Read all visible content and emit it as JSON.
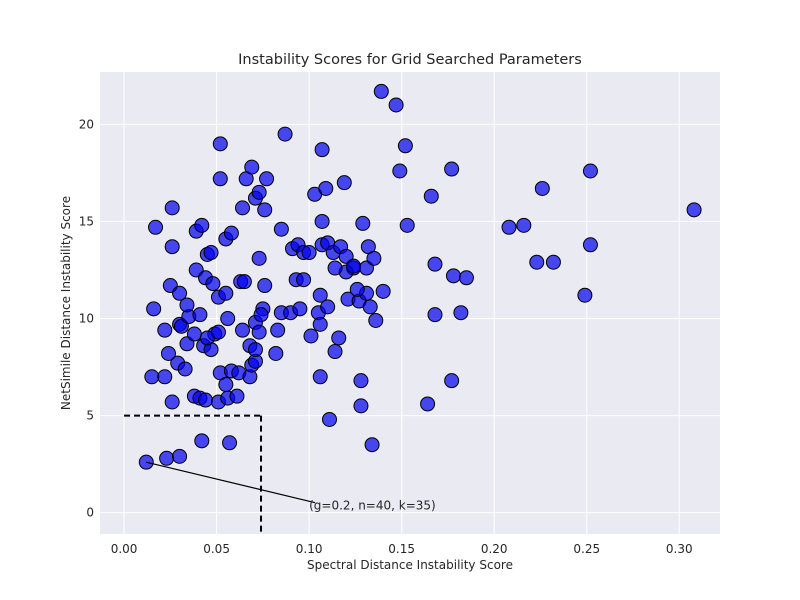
{
  "chart_data": {
    "type": "scatter",
    "title": "Instability Scores for Grid Searched Parameters",
    "xlabel": "Spectral Distance Instability Score",
    "ylabel": "NetSimile Distance Instability Score",
    "xlim": [
      -0.013,
      0.322
    ],
    "ylim": [
      -1.1,
      22.7
    ],
    "xticks": [
      0.0,
      0.05,
      0.1,
      0.15,
      0.2,
      0.25,
      0.3
    ],
    "xtick_labels": [
      "0.00",
      "0.05",
      "0.10",
      "0.15",
      "0.20",
      "0.25",
      "0.30"
    ],
    "yticks": [
      0,
      5,
      10,
      15,
      20
    ],
    "ytick_labels": [
      "0",
      "5",
      "10",
      "15",
      "20"
    ],
    "grid": true,
    "background": "#eaeaf2",
    "point_color": "#0000ee",
    "point_opacity": 0.7,
    "point_edge": "#000000",
    "threshold_box": {
      "x": 0.074,
      "y": 5.0
    },
    "annotation": {
      "text": "(g=0.2, n=40, k=35)",
      "point": [
        0.012,
        2.6
      ],
      "text_pos": [
        0.1,
        0.0
      ]
    },
    "points": [
      [
        0.012,
        2.6
      ],
      [
        0.023,
        2.8
      ],
      [
        0.03,
        2.9
      ],
      [
        0.042,
        3.7
      ],
      [
        0.057,
        3.6
      ],
      [
        0.134,
        3.5
      ],
      [
        0.111,
        4.8
      ],
      [
        0.026,
        5.7
      ],
      [
        0.038,
        6.0
      ],
      [
        0.041,
        5.9
      ],
      [
        0.044,
        5.8
      ],
      [
        0.051,
        5.7
      ],
      [
        0.056,
        5.9
      ],
      [
        0.061,
        6.0
      ],
      [
        0.015,
        7.0
      ],
      [
        0.022,
        7.0
      ],
      [
        0.029,
        7.7
      ],
      [
        0.033,
        7.4
      ],
      [
        0.052,
        7.2
      ],
      [
        0.058,
        7.3
      ],
      [
        0.062,
        7.2
      ],
      [
        0.068,
        7.0
      ],
      [
        0.069,
        7.6
      ],
      [
        0.071,
        7.8
      ],
      [
        0.106,
        7.0
      ],
      [
        0.128,
        6.8
      ],
      [
        0.177,
        6.8
      ],
      [
        0.055,
        6.6
      ],
      [
        0.128,
        5.5
      ],
      [
        0.164,
        5.6
      ],
      [
        0.024,
        8.2
      ],
      [
        0.034,
        8.7
      ],
      [
        0.043,
        8.6
      ],
      [
        0.047,
        8.4
      ],
      [
        0.049,
        9.2
      ],
      [
        0.038,
        9.2
      ],
      [
        0.045,
        9.0
      ],
      [
        0.068,
        8.6
      ],
      [
        0.071,
        8.4
      ],
      [
        0.082,
        8.2
      ],
      [
        0.114,
        8.3
      ],
      [
        0.116,
        9.0
      ],
      [
        0.016,
        10.5
      ],
      [
        0.022,
        9.4
      ],
      [
        0.03,
        9.7
      ],
      [
        0.031,
        9.6
      ],
      [
        0.035,
        10.1
      ],
      [
        0.041,
        10.2
      ],
      [
        0.051,
        9.3
      ],
      [
        0.056,
        10.0
      ],
      [
        0.064,
        9.4
      ],
      [
        0.071,
        9.8
      ],
      [
        0.073,
        9.3
      ],
      [
        0.075,
        10.5
      ],
      [
        0.074,
        10.2
      ],
      [
        0.083,
        9.4
      ],
      [
        0.085,
        10.3
      ],
      [
        0.09,
        10.3
      ],
      [
        0.095,
        10.5
      ],
      [
        0.101,
        9.1
      ],
      [
        0.105,
        10.3
      ],
      [
        0.106,
        9.7
      ],
      [
        0.11,
        10.6
      ],
      [
        0.121,
        11.0
      ],
      [
        0.127,
        10.9
      ],
      [
        0.131,
        11.3
      ],
      [
        0.133,
        10.6
      ],
      [
        0.136,
        9.9
      ],
      [
        0.168,
        10.2
      ],
      [
        0.182,
        10.3
      ],
      [
        0.025,
        11.7
      ],
      [
        0.03,
        11.3
      ],
      [
        0.034,
        10.7
      ],
      [
        0.039,
        12.5
      ],
      [
        0.044,
        12.1
      ],
      [
        0.048,
        11.8
      ],
      [
        0.051,
        11.1
      ],
      [
        0.055,
        11.3
      ],
      [
        0.063,
        11.9
      ],
      [
        0.065,
        11.9
      ],
      [
        0.076,
        11.7
      ],
      [
        0.093,
        12.0
      ],
      [
        0.097,
        12.0
      ],
      [
        0.106,
        11.2
      ],
      [
        0.124,
        12.6
      ],
      [
        0.126,
        11.5
      ],
      [
        0.12,
        12.4
      ],
      [
        0.14,
        11.4
      ],
      [
        0.168,
        12.8
      ],
      [
        0.178,
        12.2
      ],
      [
        0.185,
        12.1
      ],
      [
        0.249,
        11.2
      ],
      [
        0.017,
        14.7
      ],
      [
        0.026,
        13.7
      ],
      [
        0.039,
        14.5
      ],
      [
        0.042,
        14.8
      ],
      [
        0.045,
        13.3
      ],
      [
        0.047,
        13.4
      ],
      [
        0.055,
        14.1
      ],
      [
        0.058,
        14.4
      ],
      [
        0.073,
        13.1
      ],
      [
        0.085,
        14.6
      ],
      [
        0.091,
        13.6
      ],
      [
        0.094,
        13.8
      ],
      [
        0.097,
        13.4
      ],
      [
        0.1,
        13.4
      ],
      [
        0.107,
        13.8
      ],
      [
        0.11,
        13.9
      ],
      [
        0.113,
        13.4
      ],
      [
        0.114,
        12.6
      ],
      [
        0.117,
        13.7
      ],
      [
        0.12,
        13.2
      ],
      [
        0.124,
        12.7
      ],
      [
        0.131,
        12.6
      ],
      [
        0.132,
        13.7
      ],
      [
        0.135,
        13.1
      ],
      [
        0.129,
        14.9
      ],
      [
        0.153,
        14.8
      ],
      [
        0.208,
        14.7
      ],
      [
        0.216,
        14.8
      ],
      [
        0.223,
        12.9
      ],
      [
        0.232,
        12.9
      ],
      [
        0.252,
        13.8
      ],
      [
        0.026,
        15.7
      ],
      [
        0.052,
        17.2
      ],
      [
        0.064,
        15.7
      ],
      [
        0.066,
        17.2
      ],
      [
        0.069,
        17.8
      ],
      [
        0.071,
        16.2
      ],
      [
        0.073,
        16.5
      ],
      [
        0.076,
        15.6
      ],
      [
        0.077,
        17.2
      ],
      [
        0.103,
        16.4
      ],
      [
        0.107,
        15.0
      ],
      [
        0.109,
        16.7
      ],
      [
        0.119,
        17.0
      ],
      [
        0.149,
        17.6
      ],
      [
        0.166,
        16.3
      ],
      [
        0.177,
        17.7
      ],
      [
        0.226,
        16.7
      ],
      [
        0.252,
        17.6
      ],
      [
        0.308,
        15.6
      ],
      [
        0.052,
        19.0
      ],
      [
        0.087,
        19.5
      ],
      [
        0.107,
        18.7
      ],
      [
        0.152,
        18.9
      ],
      [
        0.139,
        21.7
      ],
      [
        0.147,
        21.0
      ]
    ]
  }
}
